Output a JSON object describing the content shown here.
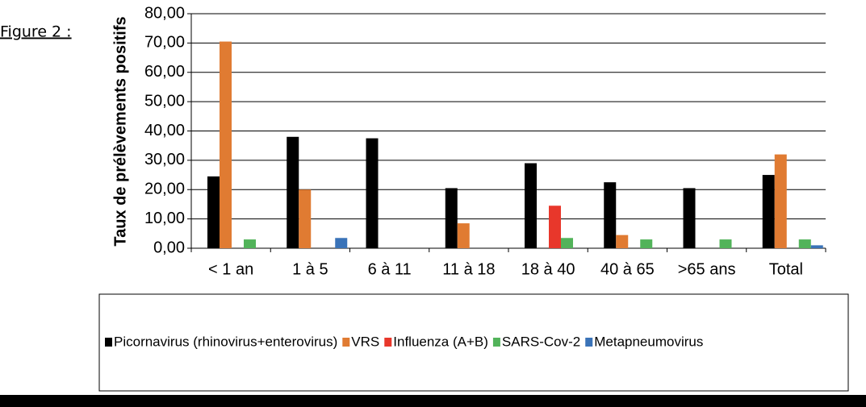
{
  "caption": "Figure 2 :",
  "chart_data": {
    "type": "bar",
    "ylabel": "Taux de prélèvements positifs",
    "categories": [
      "< 1 an",
      "1 à 5",
      "6 à 11",
      "11 à 18",
      "18 à 40",
      "40 à 65",
      ">65 ans",
      "Total"
    ],
    "series": [
      {
        "name": "Picornavirus (rhinovirus+enterovirus)",
        "color": "#000000",
        "values": [
          24.5,
          38,
          37.5,
          20.5,
          29,
          22.5,
          20.5,
          25
        ]
      },
      {
        "name": "VRS",
        "color": "#e07b32",
        "values": [
          70.5,
          20,
          0,
          8.5,
          0,
          4.5,
          0,
          32
        ]
      },
      {
        "name": "Influenza (A+B)",
        "color": "#e8372b",
        "values": [
          0,
          0,
          0,
          0,
          14.5,
          0,
          0,
          0
        ]
      },
      {
        "name": "SARS-Cov-2",
        "color": "#52b35a",
        "values": [
          3,
          0,
          0,
          0,
          3.5,
          3,
          3,
          3
        ]
      },
      {
        "name": "Metapneumovirus",
        "color": "#3a73b8",
        "values": [
          0,
          3.5,
          0,
          0,
          0,
          0,
          0,
          1
        ]
      }
    ],
    "ylim": [
      0,
      80
    ],
    "yticks": [
      {
        "value": 0,
        "label": "0,00"
      },
      {
        "value": 10,
        "label": "10,00"
      },
      {
        "value": 20,
        "label": "20,00"
      },
      {
        "value": 30,
        "label": "30,00"
      },
      {
        "value": 40,
        "label": "40,00"
      },
      {
        "value": 50,
        "label": "50,00"
      },
      {
        "value": 60,
        "label": "60,00"
      },
      {
        "value": 70,
        "label": "70,00"
      },
      {
        "value": 80,
        "label": "80,00"
      }
    ],
    "grid": true
  }
}
